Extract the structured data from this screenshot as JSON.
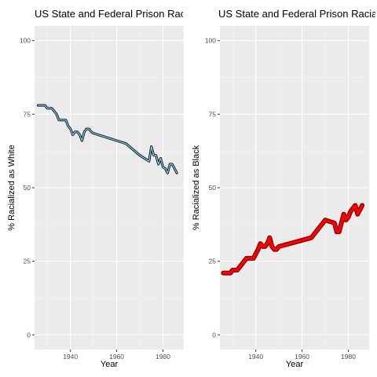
{
  "chart_data": [
    {
      "type": "line",
      "title": "US State and Federal Prison Raci",
      "xlabel": "Year",
      "ylabel": "% Racialized as White",
      "xlim": [
        1924.5,
        1989
      ],
      "ylim": [
        -5,
        105
      ],
      "xticks": [
        1940,
        1960,
        1980
      ],
      "xtick_labels": [
        "1940",
        "1960",
        "1980"
      ],
      "yticks": [
        0,
        25,
        50,
        75,
        100
      ],
      "ytick_labels": [
        "0",
        "25",
        "50",
        "75",
        "100"
      ],
      "grid": true,
      "style": {
        "outer_color": "#000000",
        "inner_color": "#87ceeb"
      },
      "series": [
        {
          "name": "White",
          "x": [
            1926,
            1929,
            1930,
            1932,
            1934,
            1935,
            1936,
            1938,
            1939,
            1940,
            1941,
            1942,
            1943,
            1944,
            1945,
            1946,
            1947,
            1948,
            1949,
            1950,
            1964,
            1970,
            1974,
            1975,
            1976,
            1977,
            1978,
            1979,
            1980,
            1981,
            1982,
            1983,
            1984,
            1986
          ],
          "y": [
            78,
            78,
            77,
            77,
            75,
            73,
            73,
            73,
            71,
            70,
            68,
            69,
            69,
            68,
            66,
            69,
            70,
            70,
            69,
            68.5,
            65,
            61,
            59,
            64,
            61,
            61,
            58,
            60,
            57,
            56.5,
            55,
            58,
            58,
            55
          ]
        }
      ]
    },
    {
      "type": "line",
      "title": "US State and Federal Prison Racia",
      "xlabel": "Year",
      "ylabel": "% Racialized as Black",
      "xlim": [
        1924.5,
        1989
      ],
      "ylim": [
        -5,
        105
      ],
      "xticks": [
        1940,
        1960,
        1980
      ],
      "xtick_labels": [
        "1940",
        "1960",
        "1980"
      ],
      "yticks": [
        0,
        25,
        50,
        75,
        100
      ],
      "ytick_labels": [
        "0",
        "25",
        "50",
        "75",
        "100"
      ],
      "grid": true,
      "style": {
        "outer_color": "#8b0000",
        "inner_color": "#ff0000"
      },
      "series": [
        {
          "name": "Black",
          "x": [
            1926,
            1929,
            1930,
            1932,
            1933,
            1934,
            1935,
            1936,
            1938,
            1939,
            1941,
            1942,
            1943,
            1944,
            1945,
            1946,
            1947,
            1948,
            1949,
            1950,
            1964,
            1970,
            1974,
            1975,
            1976,
            1977,
            1978,
            1979,
            1980,
            1981,
            1982,
            1983,
            1984,
            1986
          ],
          "y": [
            21,
            21,
            22,
            22,
            23,
            24,
            25,
            26,
            26,
            26,
            29,
            31,
            30,
            30,
            31,
            33,
            30,
            29,
            29,
            30,
            33,
            39,
            38,
            35,
            35,
            38,
            41,
            39,
            40,
            42,
            43,
            44,
            41,
            44
          ]
        }
      ]
    }
  ]
}
